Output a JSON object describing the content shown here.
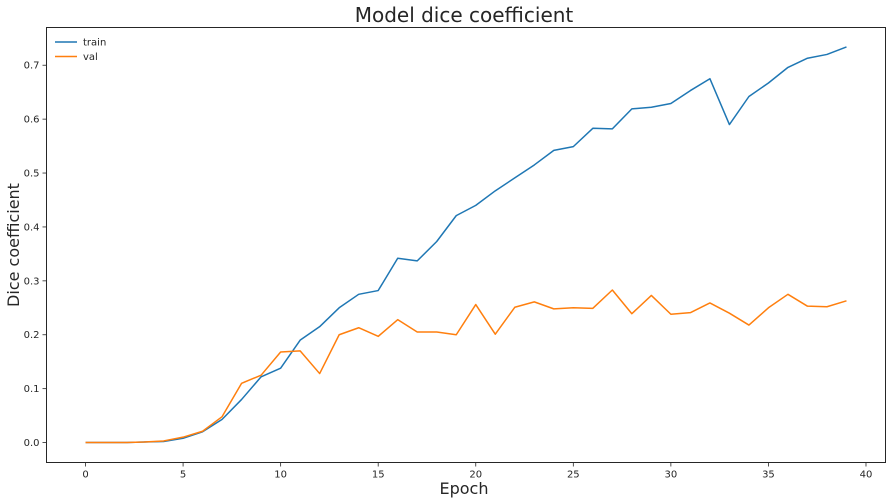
{
  "chart_data": {
    "type": "line",
    "title": "Model dice coefficient",
    "xlabel": "Epoch",
    "ylabel": "Dice coefficient",
    "xlim": [
      -2,
      41
    ],
    "ylim": [
      -0.037,
      0.77
    ],
    "xticks": [
      0,
      5,
      10,
      15,
      20,
      25,
      30,
      35,
      40
    ],
    "yticks": [
      0.0,
      0.1,
      0.2,
      0.3,
      0.4,
      0.5,
      0.6,
      0.7
    ],
    "grid": false,
    "legend_position": "top-left",
    "x": [
      0,
      1,
      2,
      3,
      4,
      5,
      6,
      7,
      8,
      9,
      10,
      11,
      12,
      13,
      14,
      15,
      16,
      17,
      18,
      19,
      20,
      21,
      22,
      23,
      24,
      25,
      26,
      27,
      28,
      29,
      30,
      31,
      32,
      33,
      34,
      35,
      36,
      37,
      38,
      39
    ],
    "series": [
      {
        "name": "train",
        "color": "#1f77b4",
        "values": [
          0.0,
          0.0,
          0.0,
          0.001,
          0.002,
          0.008,
          0.02,
          0.043,
          0.08,
          0.122,
          0.138,
          0.19,
          0.215,
          0.25,
          0.275,
          0.282,
          0.342,
          0.337,
          0.373,
          0.421,
          0.44,
          0.467,
          0.491,
          0.515,
          0.542,
          0.549,
          0.583,
          0.582,
          0.619,
          0.622,
          0.629,
          0.653,
          0.675,
          0.59,
          0.642,
          0.667,
          0.696,
          0.713,
          0.72,
          0.734
        ]
      },
      {
        "name": "val",
        "color": "#ff7f0e",
        "values": [
          0.0,
          0.0,
          0.0,
          0.001,
          0.003,
          0.01,
          0.021,
          0.048,
          0.11,
          0.125,
          0.168,
          0.17,
          0.128,
          0.2,
          0.213,
          0.197,
          0.228,
          0.205,
          0.205,
          0.2,
          0.256,
          0.201,
          0.251,
          0.261,
          0.248,
          0.25,
          0.249,
          0.283,
          0.239,
          0.273,
          0.238,
          0.241,
          0.259,
          0.24,
          0.218,
          0.25,
          0.275,
          0.253,
          0.252,
          0.263
        ]
      }
    ]
  }
}
